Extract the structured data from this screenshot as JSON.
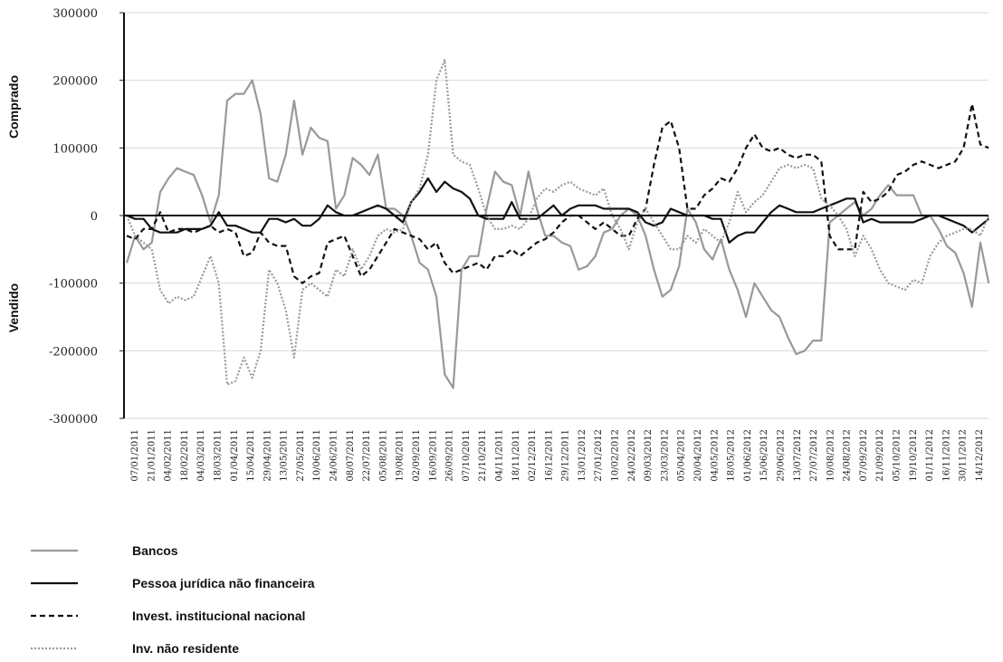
{
  "chart_data": {
    "type": "line",
    "ylabel_top": "Comprado",
    "ylabel_bottom": "Vendido",
    "ylim": [
      -300000,
      300000
    ],
    "yticks": [
      300000,
      200000,
      100000,
      0,
      -100000,
      -200000,
      -300000
    ],
    "ytick_labels": [
      "300000",
      "200000",
      "100000",
      "0",
      "-100000",
      "-200000",
      "-300000"
    ],
    "grid": true,
    "legend_position": "bottom-left",
    "n_points": 103,
    "x_tick_labels": [
      "07/01/2011",
      "21/01/2011",
      "04/02/2011",
      "18/02/2011",
      "04/03/2011",
      "18/03/2011",
      "01/04/2011",
      "15/04/2011",
      "29/04/2011",
      "13/05/2011",
      "27/05/2011",
      "10/06/2011",
      "24/06/2011",
      "08/07/2011",
      "22/07/2011",
      "05/08/2011",
      "19/08/2011",
      "02/09/2011",
      "16/09/2011",
      "26/09/2011",
      "07/10/2011",
      "21/10/2011",
      "04/11/2011",
      "18/11/2011",
      "02/12/2011",
      "16/12/2011",
      "29/12/2011",
      "13/01/2012",
      "27/01/2012",
      "10/02/2012",
      "24/02/2012",
      "09/03/2012",
      "23/03/2012",
      "05/04/2012",
      "20/04/2012",
      "04/05/2012",
      "18/05/2012",
      "01/06/2012",
      "15/06/2012",
      "29/06/2012",
      "13/07/2012",
      "27/07/2012",
      "10/08/2012",
      "24/08/2012",
      "07/09/2012",
      "21/09/2012",
      "05/10/2012",
      "19/10/2012",
      "01/11/2012",
      "16/11/2012",
      "30/11/2012",
      "14/12/2012"
    ],
    "series": [
      {
        "name": "Bancos",
        "color": "#999999",
        "style": "solid",
        "values": [
          -70000,
          -30000,
          -50000,
          -40000,
          35000,
          55000,
          70000,
          65000,
          60000,
          30000,
          -10000,
          30000,
          170000,
          180000,
          180000,
          200000,
          150000,
          55000,
          50000,
          90000,
          170000,
          90000,
          130000,
          115000,
          110000,
          10000,
          30000,
          85000,
          75000,
          60000,
          90000,
          10000,
          10000,
          0,
          -30000,
          -70000,
          -80000,
          -120000,
          -235000,
          -255000,
          -80000,
          -60000,
          -60000,
          10000,
          65000,
          50000,
          45000,
          0,
          65000,
          10000,
          -30000,
          -30000,
          -40000,
          -45000,
          -80000,
          -75000,
          -60000,
          -25000,
          -20000,
          0,
          10000,
          0,
          -30000,
          -80000,
          -120000,
          -110000,
          -75000,
          10000,
          -10000,
          -50000,
          -65000,
          -35000,
          -80000,
          -110000,
          -150000,
          -100000,
          -120000,
          -140000,
          -150000,
          -180000,
          -205000,
          -200000,
          -185000,
          -185000,
          -10000,
          0,
          10000,
          20000,
          0,
          10000,
          30000,
          45000,
          30000,
          30000,
          30000,
          0,
          0,
          -20000,
          -45000,
          -55000,
          -85000,
          -135000,
          -40000,
          -100000
        ]
      },
      {
        "name": "Pessoa jurídica não financeira",
        "color": "#111111",
        "style": "solid",
        "values": [
          0,
          -5000,
          -5000,
          -20000,
          -25000,
          -25000,
          -25000,
          -20000,
          -20000,
          -20000,
          -15000,
          5000,
          -15000,
          -15000,
          -20000,
          -25000,
          -25000,
          -5000,
          -5000,
          -10000,
          -5000,
          -15000,
          -15000,
          -5000,
          15000,
          5000,
          0,
          0,
          5000,
          10000,
          15000,
          10000,
          0,
          -10000,
          20000,
          35000,
          55000,
          35000,
          50000,
          40000,
          35000,
          25000,
          0,
          -5000,
          -5000,
          -5000,
          20000,
          -5000,
          -5000,
          -5000,
          5000,
          15000,
          0,
          10000,
          15000,
          15000,
          15000,
          10000,
          10000,
          10000,
          10000,
          5000,
          -10000,
          -15000,
          -10000,
          10000,
          5000,
          0,
          0,
          0,
          -5000,
          -5000,
          -40000,
          -30000,
          -25000,
          -25000,
          -10000,
          5000,
          15000,
          10000,
          5000,
          5000,
          5000,
          10000,
          15000,
          20000,
          25000,
          25000,
          -10000,
          -5000,
          -10000,
          -10000,
          -10000,
          -10000,
          -10000,
          -5000,
          0,
          0,
          -5000,
          -10000,
          -15000,
          -25000,
          -15000,
          -5000
        ]
      },
      {
        "name": "Invest. institucional nacional",
        "color": "#111111",
        "style": "dashed",
        "values": [
          -30000,
          -35000,
          -20000,
          -20000,
          5000,
          -25000,
          -20000,
          -20000,
          -25000,
          -20000,
          -15000,
          -25000,
          -20000,
          -25000,
          -60000,
          -55000,
          -25000,
          -40000,
          -45000,
          -45000,
          -90000,
          -100000,
          -90000,
          -85000,
          -40000,
          -35000,
          -30000,
          -60000,
          -90000,
          -80000,
          -60000,
          -40000,
          -20000,
          -25000,
          -30000,
          -35000,
          -50000,
          -40000,
          -70000,
          -85000,
          -80000,
          -75000,
          -70000,
          -80000,
          -60000,
          -60000,
          -50000,
          -60000,
          -50000,
          -40000,
          -35000,
          -25000,
          -10000,
          0,
          0,
          -10000,
          -20000,
          -10000,
          -20000,
          -30000,
          -30000,
          -5000,
          10000,
          75000,
          130000,
          140000,
          100000,
          10000,
          10000,
          30000,
          40000,
          55000,
          50000,
          70000,
          100000,
          120000,
          100000,
          95000,
          100000,
          90000,
          85000,
          90000,
          90000,
          80000,
          -30000,
          -50000,
          -50000,
          -50000,
          35000,
          20000,
          25000,
          35000,
          60000,
          65000,
          75000,
          80000,
          75000,
          70000,
          75000,
          80000,
          100000,
          165000,
          105000,
          100000
        ]
      },
      {
        "name": "Inv. não residente",
        "color": "#999999",
        "style": "dotted",
        "values": [
          0,
          -30000,
          -40000,
          -50000,
          -110000,
          -130000,
          -120000,
          -125000,
          -120000,
          -90000,
          -60000,
          -100000,
          -250000,
          -245000,
          -210000,
          -240000,
          -200000,
          -80000,
          -100000,
          -140000,
          -210000,
          -110000,
          -100000,
          -110000,
          -120000,
          -80000,
          -90000,
          -50000,
          -80000,
          -60000,
          -30000,
          -20000,
          -25000,
          -20000,
          20000,
          40000,
          90000,
          200000,
          230000,
          90000,
          80000,
          75000,
          40000,
          0,
          -20000,
          -20000,
          -15000,
          -20000,
          -5000,
          25000,
          40000,
          35000,
          45000,
          50000,
          40000,
          35000,
          30000,
          40000,
          0,
          -20000,
          -50000,
          -10000,
          10000,
          -10000,
          -30000,
          -50000,
          -50000,
          -30000,
          -40000,
          -20000,
          -30000,
          -40000,
          -10000,
          35000,
          5000,
          20000,
          30000,
          50000,
          70000,
          75000,
          70000,
          75000,
          70000,
          25000,
          15000,
          0,
          -20000,
          -60000,
          -30000,
          -50000,
          -80000,
          -100000,
          -105000,
          -110000,
          -95000,
          -100000,
          -60000,
          -40000,
          -30000,
          -25000,
          -20000,
          -20000,
          -30000,
          0
        ]
      }
    ]
  },
  "legend": {
    "items": [
      {
        "label": "Bancos",
        "color": "#999999",
        "style": "solid"
      },
      {
        "label": "Pessoa jurídica não financeira",
        "color": "#111111",
        "style": "solid"
      },
      {
        "label": "Invest. institucional nacional",
        "color": "#111111",
        "style": "dashed"
      },
      {
        "label": "Inv. não residente",
        "color": "#999999",
        "style": "dotted"
      }
    ]
  }
}
